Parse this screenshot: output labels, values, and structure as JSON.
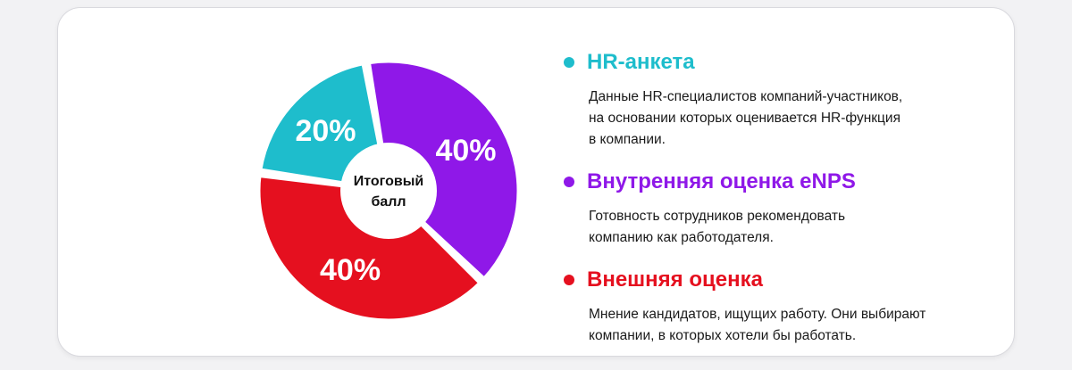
{
  "colors": {
    "teal": "#1ebdcc",
    "purple": "#8f18e8",
    "red": "#e5101f"
  },
  "chart_data": {
    "type": "pie",
    "center_label": [
      "Итоговый",
      "балл"
    ],
    "slices": [
      {
        "name": "HR-анкета",
        "value": 20,
        "label": "20%",
        "color": "#1ebdcc"
      },
      {
        "name": "Внутренняя оценка eNPS",
        "value": 40,
        "label": "40%",
        "color": "#8f18e8"
      },
      {
        "name": "Внешняя оценка",
        "value": 40,
        "label": "40%",
        "color": "#e5101f"
      }
    ]
  },
  "legend": [
    {
      "title": "HR-анкета",
      "color": "#1ebdcc",
      "description": "Данные HR-специалистов компаний-участников,\nна основании которых оценивается HR-функция\nв компании."
    },
    {
      "title": "Внутренняя оценка eNPS",
      "color": "#8f18e8",
      "description": "Готовность сотрудников рекомендовать\nкомпанию как работодателя."
    },
    {
      "title": "Внешняя оценка",
      "color": "#e5101f",
      "description": "Мнение кандидатов, ищущих работу. Они выбирают\nкомпании, в которых хотели бы работать."
    }
  ]
}
